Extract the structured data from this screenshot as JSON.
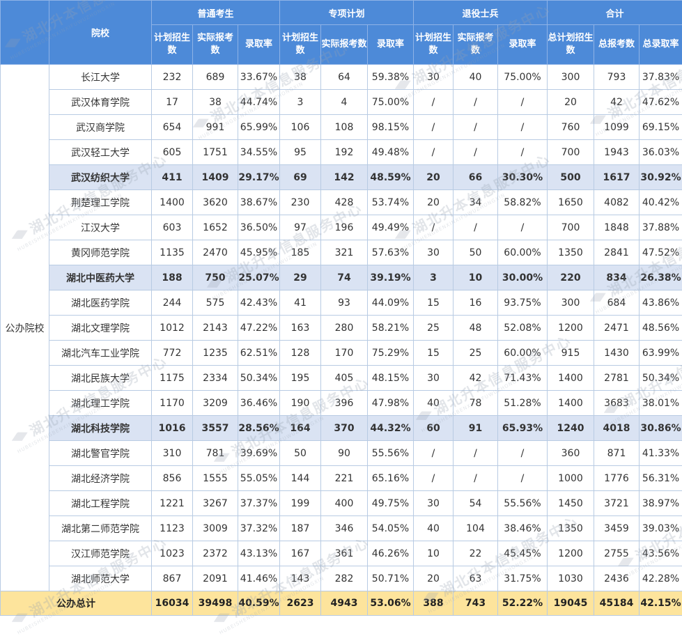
{
  "header": {
    "school": "院校",
    "groups": [
      "普通考生",
      "专项计划",
      "退役士兵",
      "合计"
    ],
    "sub": [
      "计划招生数",
      "实际报考数",
      "录取率",
      "计划招生数",
      "实际报考数",
      "录取率",
      "计划招生数",
      "实际报考数",
      "录取率",
      "总计划招生数",
      "总报考数",
      "总录取率"
    ]
  },
  "category": "公办院校",
  "rows": [
    {
      "name": "长江大学",
      "v": [
        "232",
        "689",
        "33.67%",
        "38",
        "64",
        "59.38%",
        "30",
        "40",
        "75.00%",
        "300",
        "793",
        "37.83%"
      ],
      "hl": false
    },
    {
      "name": "武汉体育学院",
      "v": [
        "17",
        "38",
        "44.74%",
        "3",
        "4",
        "75.00%",
        "/",
        "/",
        "/",
        "20",
        "42",
        "47.62%"
      ],
      "hl": false
    },
    {
      "name": "武汉商学院",
      "v": [
        "654",
        "991",
        "65.99%",
        "106",
        "108",
        "98.15%",
        "/",
        "/",
        "/",
        "760",
        "1099",
        "69.15%"
      ],
      "hl": false
    },
    {
      "name": "武汉轻工大学",
      "v": [
        "605",
        "1751",
        "34.55%",
        "95",
        "192",
        "49.48%",
        "/",
        "/",
        "/",
        "700",
        "1943",
        "36.03%"
      ],
      "hl": false
    },
    {
      "name": "武汉纺织大学",
      "v": [
        "411",
        "1409",
        "29.17%",
        "69",
        "142",
        "48.59%",
        "20",
        "66",
        "30.30%",
        "500",
        "1617",
        "30.92%"
      ],
      "hl": true
    },
    {
      "name": "荆楚理工学院",
      "v": [
        "1400",
        "3620",
        "38.67%",
        "230",
        "428",
        "53.74%",
        "20",
        "34",
        "58.82%",
        "1650",
        "4082",
        "40.42%"
      ],
      "hl": false
    },
    {
      "name": "江汉大学",
      "v": [
        "603",
        "1652",
        "36.50%",
        "97",
        "196",
        "49.49%",
        "/",
        "/",
        "/",
        "700",
        "1848",
        "37.88%"
      ],
      "hl": false
    },
    {
      "name": "黄冈师范学院",
      "v": [
        "1135",
        "2470",
        "45.95%",
        "185",
        "321",
        "57.63%",
        "30",
        "50",
        "60.00%",
        "1350",
        "2841",
        "47.52%"
      ],
      "hl": false
    },
    {
      "name": "湖北中医药大学",
      "v": [
        "188",
        "750",
        "25.07%",
        "29",
        "74",
        "39.19%",
        "3",
        "10",
        "30.00%",
        "220",
        "834",
        "26.38%"
      ],
      "hl": true
    },
    {
      "name": "湖北医药学院",
      "v": [
        "244",
        "575",
        "42.43%",
        "41",
        "93",
        "44.09%",
        "15",
        "16",
        "93.75%",
        "300",
        "684",
        "43.86%"
      ],
      "hl": false
    },
    {
      "name": "湖北文理学院",
      "v": [
        "1012",
        "2143",
        "47.22%",
        "163",
        "280",
        "58.21%",
        "25",
        "48",
        "52.08%",
        "1200",
        "2471",
        "48.56%"
      ],
      "hl": false
    },
    {
      "name": "湖北汽车工业学院",
      "v": [
        "772",
        "1235",
        "62.51%",
        "128",
        "170",
        "75.29%",
        "15",
        "25",
        "60.00%",
        "915",
        "1430",
        "63.99%"
      ],
      "hl": false
    },
    {
      "name": "湖北民族大学",
      "v": [
        "1175",
        "2334",
        "50.34%",
        "195",
        "405",
        "48.15%",
        "30",
        "42",
        "71.43%",
        "1400",
        "2781",
        "50.34%"
      ],
      "hl": false
    },
    {
      "name": "湖北理工学院",
      "v": [
        "1170",
        "3209",
        "36.46%",
        "190",
        "396",
        "47.98%",
        "40",
        "78",
        "51.28%",
        "1400",
        "3683",
        "38.01%"
      ],
      "hl": false
    },
    {
      "name": "湖北科技学院",
      "v": [
        "1016",
        "3557",
        "28.56%",
        "164",
        "370",
        "44.32%",
        "60",
        "91",
        "65.93%",
        "1240",
        "4018",
        "30.86%"
      ],
      "hl": true
    },
    {
      "name": "湖北警官学院",
      "v": [
        "310",
        "781",
        "39.69%",
        "50",
        "90",
        "55.56%",
        "/",
        "/",
        "/",
        "360",
        "871",
        "41.33%"
      ],
      "hl": false
    },
    {
      "name": "湖北经济学院",
      "v": [
        "856",
        "1555",
        "55.05%",
        "144",
        "221",
        "65.16%",
        "/",
        "/",
        "/",
        "1000",
        "1776",
        "56.31%"
      ],
      "hl": false
    },
    {
      "name": "湖北工程学院",
      "v": [
        "1221",
        "3267",
        "37.37%",
        "199",
        "400",
        "49.75%",
        "30",
        "54",
        "55.56%",
        "1450",
        "3721",
        "38.97%"
      ],
      "hl": false
    },
    {
      "name": "湖北第二师范学院",
      "v": [
        "1123",
        "3009",
        "37.32%",
        "187",
        "346",
        "54.05%",
        "40",
        "104",
        "38.46%",
        "1350",
        "3459",
        "39.03%"
      ],
      "hl": false
    },
    {
      "name": "汉江师范学院",
      "v": [
        "1023",
        "2372",
        "43.13%",
        "167",
        "361",
        "46.26%",
        "10",
        "22",
        "45.45%",
        "1200",
        "2755",
        "43.56%"
      ],
      "hl": false
    },
    {
      "name": "湖北师范大学",
      "v": [
        "867",
        "2091",
        "41.46%",
        "143",
        "282",
        "50.71%",
        "20",
        "63",
        "31.75%",
        "1030",
        "2436",
        "42.28%"
      ],
      "hl": false
    }
  ],
  "total": {
    "name": "公办总计",
    "v": [
      "16034",
      "39498",
      "40.59%",
      "2623",
      "4943",
      "53.06%",
      "388",
      "743",
      "52.22%",
      "19045",
      "45184",
      "42.15%"
    ]
  },
  "watermark": {
    "text": "湖北升本信息服务中心",
    "sub": "HUBEISHENGBENXINXIFUWUZHONGXIN"
  },
  "colors": {
    "header": "#4d8ad8",
    "highlight": "#dae3f3",
    "total": "#fde49c"
  }
}
